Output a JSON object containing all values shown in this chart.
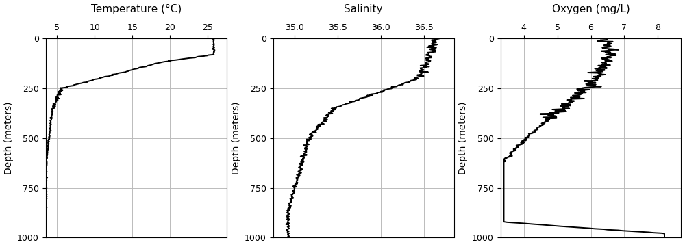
{
  "temp_title": "Temperature (°C)",
  "sal_title": "Salinity",
  "oxy_title": "Oxygen (mg/L)",
  "ylabel": "Depth (meters)",
  "depth_lim": [
    0,
    1000
  ],
  "depth_ticks": [
    0,
    250,
    500,
    750,
    1000
  ],
  "temp_xlim": [
    3.5,
    27.5
  ],
  "temp_xticks": [
    5,
    10,
    15,
    20,
    25
  ],
  "sal_xlim": [
    34.75,
    36.85
  ],
  "sal_xticks": [
    35.0,
    35.5,
    36.0,
    36.5
  ],
  "oxy_xlim": [
    3.3,
    8.7
  ],
  "oxy_xticks": [
    4,
    5,
    6,
    7,
    8
  ],
  "line_color": "#000000",
  "line_width": 1.4,
  "bg_color": "#ffffff",
  "grid_color": "#bbbbbb",
  "title_fontsize": 11,
  "label_fontsize": 10,
  "tick_fontsize": 9
}
